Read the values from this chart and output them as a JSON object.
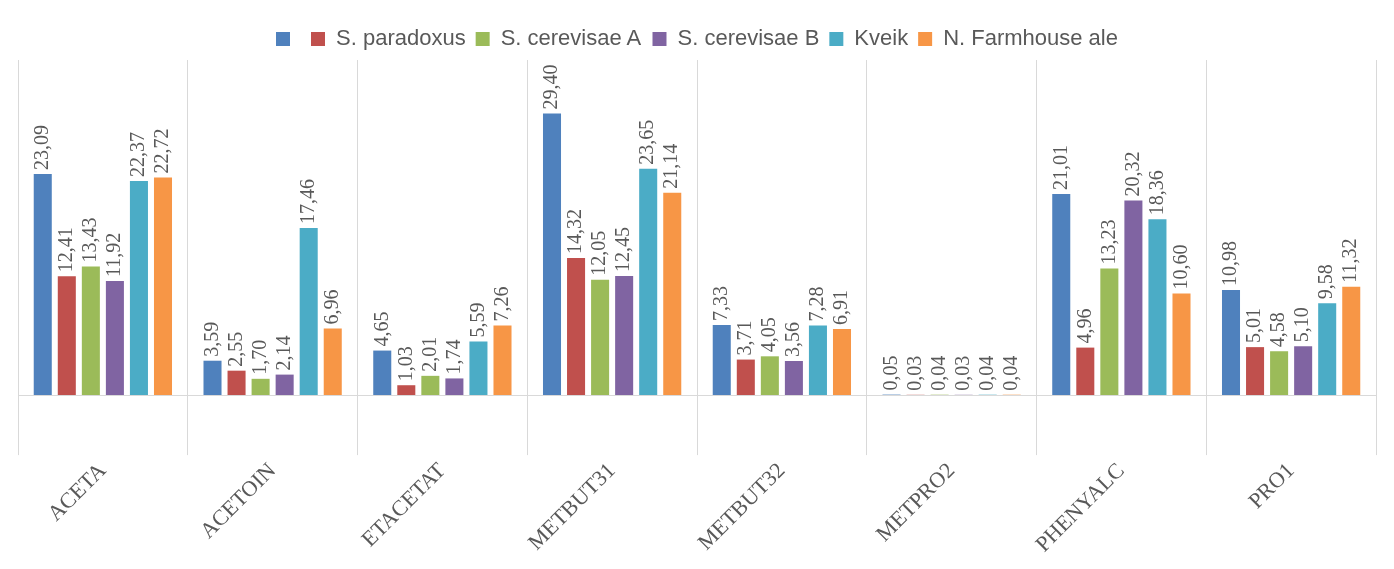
{
  "chart_data": {
    "type": "bar",
    "categories": [
      "ACETA",
      "ACETOIN",
      "ETACETAT",
      "METBUT31",
      "METBUT32",
      "METPRO2",
      "PHENYALC",
      "PRO1"
    ],
    "series": [
      {
        "color": "#4f81bd",
        "values": [
          23.09,
          3.59,
          4.65,
          29.4,
          7.33,
          0.05,
          21.01,
          10.98
        ],
        "value_labels": [
          "23,09",
          "3,59",
          "4,65",
          "29,40",
          "7,33",
          "0,05",
          "21,01",
          "10,98"
        ]
      },
      {
        "name": "S. paradoxus",
        "color": "#c0504d",
        "values": [
          12.41,
          2.55,
          1.03,
          14.32,
          3.71,
          0.03,
          4.96,
          5.01
        ],
        "value_labels": [
          "12,41",
          "2,55",
          "1,03",
          "14,32",
          "3,71",
          "0,03",
          "4,96",
          "5,01"
        ]
      },
      {
        "name": "S. cerevisae A",
        "color": "#9bbb59",
        "values": [
          13.43,
          1.7,
          2.01,
          12.05,
          4.05,
          0.04,
          13.23,
          4.58
        ],
        "value_labels": [
          "13,43",
          "1,70",
          "2,01",
          "12,05",
          "4,05",
          "0,04",
          "13,23",
          "4,58"
        ]
      },
      {
        "name": "S. cerevisae B",
        "color": "#8064a2",
        "values": [
          11.92,
          2.14,
          1.74,
          12.45,
          3.56,
          0.03,
          20.32,
          5.1
        ],
        "value_labels": [
          "11,92",
          "2,14",
          "1,74",
          "12,45",
          "3,56",
          "0,03",
          "20,32",
          "5,10"
        ]
      },
      {
        "name": "Kveik",
        "color": "#4bacc6",
        "values": [
          22.37,
          17.46,
          5.59,
          23.65,
          7.28,
          0.04,
          18.36,
          9.58
        ],
        "value_labels": [
          "22,37",
          "17,46",
          "5,59",
          "23,65",
          "7,28",
          "0,04",
          "18,36",
          "9,58"
        ]
      },
      {
        "name": "N. Farmhouse ale",
        "color": "#f79646",
        "values": [
          22.72,
          6.96,
          7.26,
          21.14,
          6.91,
          0.04,
          10.6,
          11.32
        ],
        "value_labels": [
          "22,72",
          "6,96",
          "7,26",
          "21,14",
          "6,91",
          "0,04",
          "10,60",
          "11,32"
        ]
      }
    ],
    "grid": "x",
    "legend": "top"
  }
}
